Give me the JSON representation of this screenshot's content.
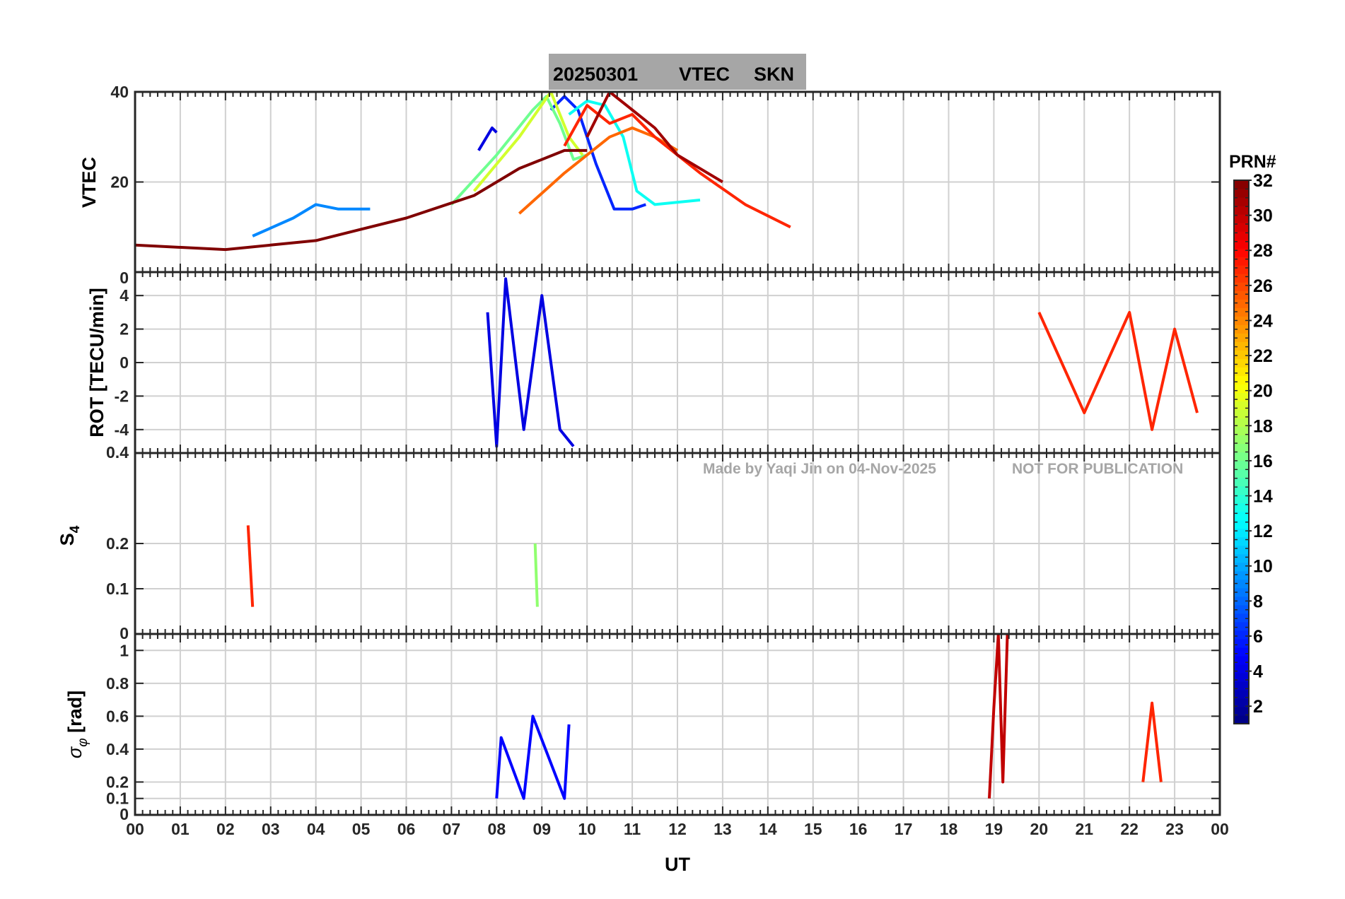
{
  "title": {
    "date": "20250301",
    "quantity": "VTEC",
    "station": "SKN"
  },
  "watermark": {
    "made_by": "Made by Yaqi Jin on 04-Nov-2025",
    "notice": "NOT FOR PUBLICATION"
  },
  "colorbar": {
    "label": "PRN#",
    "colormap": "jet",
    "range": [
      1,
      32
    ],
    "ticks": [
      "2",
      "4",
      "6",
      "8",
      "10",
      "12",
      "14",
      "16",
      "18",
      "20",
      "22",
      "24",
      "26",
      "28",
      "30",
      "32"
    ]
  },
  "chart_data": [
    {
      "type": "line",
      "panel": "vtec",
      "ylabel": "VTEC",
      "xlim": [
        0,
        24
      ],
      "ylim": [
        0,
        40
      ],
      "yticks": [
        "20",
        "40"
      ],
      "grid": true,
      "series": [
        {
          "prn": 4,
          "x": [
            7.6,
            7.9,
            8.0
          ],
          "y": [
            27,
            32,
            31
          ]
        },
        {
          "prn": 6,
          "x": [
            9.2,
            9.5,
            9.8,
            10.2,
            10.6,
            11.0,
            11.3
          ],
          "y": [
            36,
            39,
            36,
            24,
            14,
            14,
            15
          ]
        },
        {
          "prn": 9,
          "x": [
            2.6,
            3.5,
            4.0,
            4.5,
            5.2
          ],
          "y": [
            8,
            12,
            15,
            14,
            14
          ]
        },
        {
          "prn": 13,
          "x": [
            9.6,
            10.0,
            10.4,
            10.8,
            11.1,
            11.5,
            12.5
          ],
          "y": [
            35,
            38,
            37,
            30,
            18,
            15,
            16
          ]
        },
        {
          "prn": 16,
          "x": [
            7.0,
            8.0,
            8.8,
            9.1,
            9.4,
            9.7,
            10.0
          ],
          "y": [
            15,
            26,
            36,
            39,
            33,
            25,
            26
          ]
        },
        {
          "prn": 19,
          "x": [
            7.5,
            8.5,
            9.2,
            9.6,
            9.9
          ],
          "y": [
            18,
            30,
            40,
            30,
            26
          ]
        },
        {
          "prn": 25,
          "x": [
            8.5,
            9.5,
            10.5,
            11.0,
            11.5,
            12.0
          ],
          "y": [
            13,
            22,
            30,
            32,
            30,
            27
          ]
        },
        {
          "prn": 27,
          "x": [
            9.5,
            10.0,
            10.5,
            11.0,
            11.5,
            12.5,
            13.5,
            14.5
          ],
          "y": [
            28,
            37,
            33,
            35,
            30,
            22,
            15,
            10
          ]
        },
        {
          "prn": 31,
          "x": [
            10.0,
            10.5,
            11.0,
            11.5,
            12.0,
            13.0
          ],
          "y": [
            30,
            40,
            36,
            32,
            26,
            20
          ]
        },
        {
          "prn": 32,
          "x": [
            0.0,
            2.0,
            4.0,
            6.0,
            7.5,
            8.5,
            9.5,
            10.0
          ],
          "y": [
            6,
            5,
            7,
            12,
            17,
            23,
            27,
            27
          ]
        }
      ]
    },
    {
      "type": "line",
      "panel": "rot",
      "ylabel": "ROT [TECU/min]",
      "xlim": [
        0,
        24
      ],
      "ylim": [
        -5.4,
        5.4
      ],
      "yticks": [
        "-4",
        "-2",
        "0",
        "2",
        "4"
      ],
      "top_tick_label": "0",
      "bottom_tick_label": "0.4",
      "grid": true,
      "series": [
        {
          "prn": 4,
          "x": [
            7.8,
            8.0,
            8.2,
            8.6,
            9.0,
            9.4,
            9.7
          ],
          "y": [
            3,
            -5,
            5,
            -4,
            4,
            -4,
            -5
          ]
        },
        {
          "prn": 27,
          "x": [
            20.0,
            21.0,
            22.0,
            22.5,
            23.0,
            23.5
          ],
          "y": [
            3,
            -3,
            3,
            -4,
            2,
            -3
          ]
        }
      ]
    },
    {
      "type": "line",
      "panel": "s4",
      "ylabel": "S4",
      "xlim": [
        0,
        24
      ],
      "ylim": [
        0,
        0.4
      ],
      "yticks": [
        "0.1",
        "0.2"
      ],
      "bottom_tick_label": "0",
      "grid": true,
      "series": [
        {
          "prn": 27,
          "x": [
            2.5,
            2.6
          ],
          "y": [
            0.24,
            0.06
          ]
        },
        {
          "prn": 17,
          "x": [
            8.85,
            8.9
          ],
          "y": [
            0.2,
            0.06
          ]
        }
      ]
    },
    {
      "type": "line",
      "panel": "sigma_phi",
      "ylabel": "σ_φ [rad]",
      "xlim": [
        0,
        24
      ],
      "ylim": [
        0,
        1.1
      ],
      "yticks": [
        "0.1",
        "0.2",
        "0.4",
        "0.6",
        "0.8",
        "1"
      ],
      "bottom_tick_label": "0",
      "xlabel": "UT",
      "xticks": [
        "00",
        "01",
        "02",
        "03",
        "04",
        "05",
        "06",
        "07",
        "08",
        "09",
        "10",
        "11",
        "12",
        "13",
        "14",
        "15",
        "16",
        "17",
        "18",
        "19",
        "20",
        "21",
        "22",
        "23",
        "00"
      ],
      "grid": true,
      "series": [
        {
          "prn": 5,
          "x": [
            8.0,
            8.1,
            8.6,
            8.8,
            9.5,
            9.6
          ],
          "y": [
            0.1,
            0.47,
            0.1,
            0.6,
            0.1,
            0.55
          ]
        },
        {
          "prn": 30,
          "x": [
            18.9,
            19.0,
            19.1,
            19.2,
            19.3
          ],
          "y": [
            0.1,
            0.65,
            1.1,
            0.2,
            1.1
          ]
        },
        {
          "prn": 27,
          "x": [
            22.3,
            22.5,
            22.7
          ],
          "y": [
            0.2,
            0.68,
            0.2
          ]
        }
      ]
    }
  ]
}
